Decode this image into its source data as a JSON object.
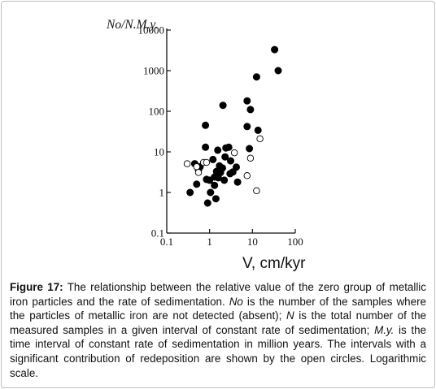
{
  "chart_data": {
    "type": "scatter",
    "ylabel": "No/N.M.y.",
    "xlabel": "V, cm/kyr",
    "x_scale": "log",
    "y_scale": "log",
    "xlim": [
      0.1,
      100
    ],
    "ylim": [
      0.1,
      10000
    ],
    "x_ticks": [
      {
        "value": 0.1,
        "label": "0.1"
      },
      {
        "value": 1,
        "label": "1"
      },
      {
        "value": 10,
        "label": "10"
      },
      {
        "value": 100,
        "label": "100"
      }
    ],
    "y_ticks": [
      {
        "value": 0.1,
        "label": "0.1"
      },
      {
        "value": 1,
        "label": "1"
      },
      {
        "value": 10,
        "label": "10"
      },
      {
        "value": 100,
        "label": "100"
      },
      {
        "value": 1000,
        "label": "1000"
      },
      {
        "value": 10000,
        "label": "10000"
      }
    ],
    "grid": false,
    "series": [
      {
        "marker": "filled-circle",
        "points": [
          [
            0.35,
            1.0
          ],
          [
            0.45,
            5.1
          ],
          [
            0.5,
            1.6
          ],
          [
            0.55,
            3.6
          ],
          [
            0.6,
            4.3
          ],
          [
            0.8,
            45
          ],
          [
            0.8,
            13
          ],
          [
            0.85,
            2.1
          ],
          [
            0.9,
            0.55
          ],
          [
            1.0,
            2.0
          ],
          [
            1.05,
            1.0
          ],
          [
            1.2,
            6.5
          ],
          [
            1.3,
            2.4
          ],
          [
            1.3,
            1.5
          ],
          [
            1.4,
            0.7
          ],
          [
            1.45,
            3.3
          ],
          [
            1.55,
            11
          ],
          [
            1.6,
            2.3
          ],
          [
            1.7,
            4.5
          ],
          [
            1.8,
            3.1
          ],
          [
            2.0,
            4.0
          ],
          [
            2.05,
            140
          ],
          [
            2.2,
            2.0
          ],
          [
            2.3,
            7.5
          ],
          [
            2.4,
            12.5
          ],
          [
            2.8,
            13
          ],
          [
            3.0,
            2.9
          ],
          [
            3.1,
            6.0
          ],
          [
            3.5,
            3.2
          ],
          [
            4.2,
            4.2
          ],
          [
            4.5,
            1.8
          ],
          [
            7.5,
            180
          ],
          [
            7.5,
            42
          ],
          [
            8.5,
            12
          ],
          [
            9.0,
            110
          ],
          [
            12.5,
            700
          ],
          [
            13.5,
            34
          ],
          [
            33,
            3300
          ],
          [
            40,
            1000
          ]
        ]
      },
      {
        "marker": "open-circle",
        "points": [
          [
            0.3,
            5.1
          ],
          [
            0.5,
            4.3
          ],
          [
            0.55,
            3.1
          ],
          [
            0.72,
            5.5
          ],
          [
            0.85,
            5.5
          ],
          [
            3.8,
            9.5
          ],
          [
            7.5,
            2.6
          ],
          [
            9.0,
            7.0
          ],
          [
            12.5,
            1.1
          ],
          [
            15,
            21
          ]
        ]
      }
    ]
  },
  "caption": {
    "label": "Figure 17:",
    "segments": [
      " The relationship between the relative value of the zero group of metallic iron particles and the rate of sedimentation. ",
      "No",
      " is the number of the samples where the particles of metallic iron are not detected (absent); ",
      "N",
      " is the total number of the measured samples in a given interval of constant rate of sedimentation; ",
      "M.y.",
      " is the time interval of constant rate of sedimentation in million years. The intervals with a significant contribution of redeposition are shown by the open circles. Logarithmic scale."
    ]
  }
}
